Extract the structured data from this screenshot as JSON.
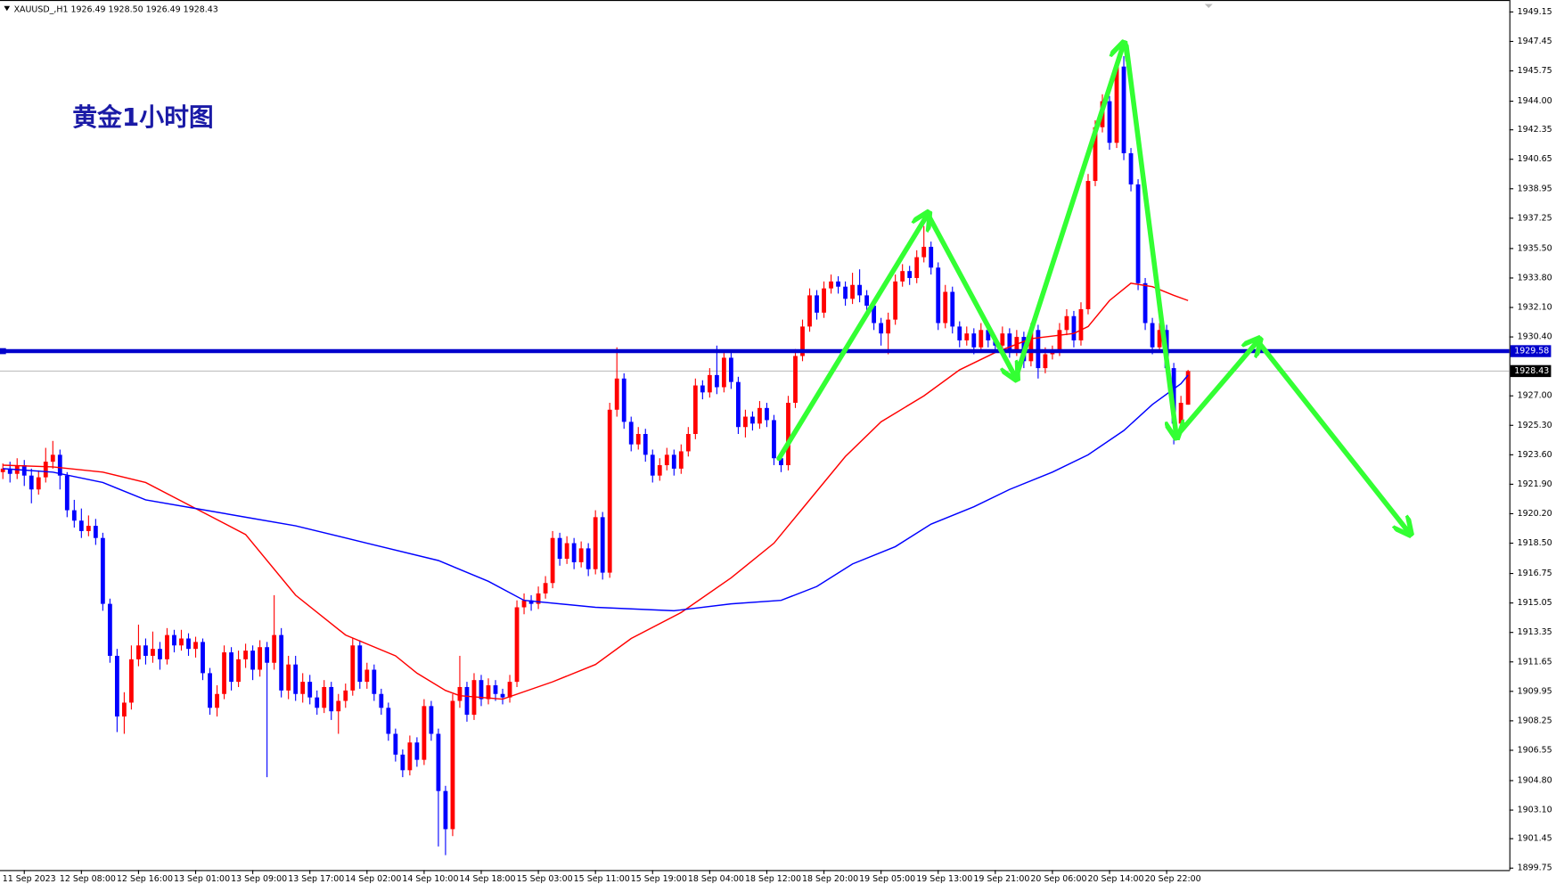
{
  "chart_data": {
    "type": "candlestick",
    "header": "XAUUSD_,H1  1926.49 1928.50 1926.49 1928.43",
    "title": "黄金1小时图",
    "up_color": "#ff0000",
    "down_color": "#0000ff",
    "xlim": [
      -0.4,
      211
    ],
    "ylim": [
      1899.64,
      1949.84
    ],
    "yticks": [
      {
        "value": 1949.15,
        "label": "1949.15"
      },
      {
        "value": 1947.45,
        "label": "1947.45"
      },
      {
        "value": 1945.75,
        "label": "1945.75"
      },
      {
        "value": 1944.0,
        "label": "1944.00"
      },
      {
        "value": 1942.35,
        "label": "1942.35"
      },
      {
        "value": 1940.65,
        "label": "1940.65"
      },
      {
        "value": 1938.95,
        "label": "1938.95"
      },
      {
        "value": 1937.25,
        "label": "1937.25"
      },
      {
        "value": 1935.5,
        "label": "1935.50"
      },
      {
        "value": 1933.8,
        "label": "1933.80"
      },
      {
        "value": 1932.1,
        "label": "1932.10"
      },
      {
        "value": 1930.4,
        "label": "1930.40"
      },
      {
        "value": 1927.0,
        "label": "1927.00"
      },
      {
        "value": 1925.3,
        "label": "1925.30"
      },
      {
        "value": 1923.6,
        "label": "1923.60"
      },
      {
        "value": 1921.9,
        "label": "1921.90"
      },
      {
        "value": 1920.2,
        "label": "1920.20"
      },
      {
        "value": 1918.5,
        "label": "1918.50"
      },
      {
        "value": 1916.75,
        "label": "1916.75"
      },
      {
        "value": 1915.05,
        "label": "1915.05"
      },
      {
        "value": 1913.35,
        "label": "1913.35"
      },
      {
        "value": 1911.65,
        "label": "1911.65"
      },
      {
        "value": 1909.95,
        "label": "1909.95"
      },
      {
        "value": 1908.25,
        "label": "1908.25"
      },
      {
        "value": 1906.55,
        "label": "1906.55"
      },
      {
        "value": 1904.8,
        "label": "1904.80"
      },
      {
        "value": 1903.1,
        "label": "1903.10"
      },
      {
        "value": 1901.45,
        "label": "1901.45"
      },
      {
        "value": 1899.75,
        "label": "1899.75"
      }
    ],
    "xticks": [
      {
        "value": 3,
        "label": "11 Sep 2023"
      },
      {
        "value": 11,
        "label": "12 Sep 08:00"
      },
      {
        "value": 19,
        "label": "12 Sep 16:00"
      },
      {
        "value": 27,
        "label": "13 Sep 01:00"
      },
      {
        "value": 35,
        "label": "13 Sep 09:00"
      },
      {
        "value": 43,
        "label": "13 Sep 17:00"
      },
      {
        "value": 51,
        "label": "14 Sep 02:00"
      },
      {
        "value": 59,
        "label": "14 Sep 10:00"
      },
      {
        "value": 67,
        "label": "14 Sep 18:00"
      },
      {
        "value": 75,
        "label": "15 Sep 03:00"
      },
      {
        "value": 83,
        "label": "15 Sep 11:00"
      },
      {
        "value": 91,
        "label": "15 Sep 19:00"
      },
      {
        "value": 99,
        "label": "18 Sep 04:00"
      },
      {
        "value": 107,
        "label": "18 Sep 12:00"
      },
      {
        "value": 115,
        "label": "18 Sep 20:00"
      },
      {
        "value": 123,
        "label": "19 Sep 05:00"
      },
      {
        "value": 131,
        "label": "19 Sep 13:00"
      },
      {
        "value": 139,
        "label": "19 Sep 21:00"
      },
      {
        "value": 147,
        "label": "20 Sep 06:00"
      },
      {
        "value": 155,
        "label": "20 Sep 14:00"
      },
      {
        "value": 163,
        "label": "20 Sep 22:00"
      }
    ],
    "level_line": {
      "value": 1929.58,
      "color": "#0000cc"
    },
    "price_line": {
      "value": 1928.43,
      "color": "#c0c0c0"
    },
    "moving_averages": [
      {
        "color": "#ff0000",
        "x": [
          0,
          7,
          14,
          20,
          27,
          34,
          41,
          48,
          55,
          58,
          62,
          64,
          70,
          77,
          83,
          88,
          95,
          102,
          108,
          112,
          118,
          123,
          129,
          134,
          139,
          144,
          150,
          152,
          155,
          158,
          161,
          164,
          166
        ],
        "values": [
          1923.0,
          1922.9,
          1922.6,
          1922.0,
          1920.5,
          1919.0,
          1915.5,
          1913.2,
          1912.0,
          1911.0,
          1910.0,
          1909.7,
          1909.5,
          1910.5,
          1911.5,
          1913.0,
          1914.5,
          1916.5,
          1918.5,
          1920.5,
          1923.5,
          1925.5,
          1927.0,
          1928.5,
          1929.5,
          1930.3,
          1930.6,
          1931.0,
          1932.5,
          1933.5,
          1933.3,
          1932.8,
          1932.5
        ]
      },
      {
        "color": "#0000ff",
        "x": [
          0,
          7,
          14,
          20,
          27,
          34,
          41,
          51,
          61,
          68,
          73,
          83,
          94,
          102,
          109,
          114,
          119,
          125,
          130,
          136,
          141,
          147,
          152,
          157,
          161,
          165,
          166
        ],
        "values": [
          1922.8,
          1922.6,
          1922.0,
          1921.0,
          1920.5,
          1920.0,
          1919.5,
          1918.5,
          1917.5,
          1916.3,
          1915.2,
          1914.8,
          1914.6,
          1915.0,
          1915.2,
          1916.0,
          1917.3,
          1918.3,
          1919.6,
          1920.6,
          1921.6,
          1922.6,
          1923.6,
          1925.0,
          1926.5,
          1927.7,
          1928.2
        ]
      }
    ],
    "candles": [
      [
        1922.6,
        1923.1,
        1922.2,
        1922.8
      ],
      [
        1922.8,
        1923.2,
        1922.0,
        1922.5
      ],
      [
        1922.5,
        1923.4,
        1922.2,
        1923.0
      ],
      [
        1923.0,
        1923.3,
        1921.8,
        1922.4
      ],
      [
        1922.4,
        1922.8,
        1920.8,
        1921.6
      ],
      [
        1921.6,
        1922.7,
        1921.3,
        1922.3
      ],
      [
        1922.3,
        1924.0,
        1922.0,
        1923.2
      ],
      [
        1923.2,
        1924.4,
        1922.8,
        1923.6
      ],
      [
        1923.6,
        1923.9,
        1921.6,
        1922.4
      ],
      [
        1922.4,
        1922.6,
        1920.0,
        1920.4
      ],
      [
        1920.4,
        1921.0,
        1919.4,
        1919.8
      ],
      [
        1919.8,
        1920.5,
        1918.8,
        1919.2
      ],
      [
        1919.2,
        1920.1,
        1918.9,
        1919.5
      ],
      [
        1919.5,
        1919.9,
        1918.4,
        1918.8
      ],
      [
        1918.8,
        1919.1,
        1914.6,
        1915.0
      ],
      [
        1915.0,
        1915.3,
        1911.6,
        1912.0
      ],
      [
        1912.0,
        1912.4,
        1907.6,
        1908.5
      ],
      [
        1908.5,
        1909.9,
        1907.5,
        1909.3
      ],
      [
        1909.3,
        1912.6,
        1908.9,
        1911.8
      ],
      [
        1911.8,
        1913.8,
        1911.4,
        1912.6
      ],
      [
        1912.6,
        1913.0,
        1911.5,
        1912.0
      ],
      [
        1912.0,
        1913.4,
        1911.6,
        1912.4
      ],
      [
        1912.4,
        1912.8,
        1911.2,
        1911.8
      ],
      [
        1911.8,
        1913.6,
        1911.5,
        1913.2
      ],
      [
        1913.2,
        1913.5,
        1912.2,
        1912.6
      ],
      [
        1912.6,
        1913.5,
        1912.3,
        1913.0
      ],
      [
        1913.0,
        1913.3,
        1912.0,
        1912.4
      ],
      [
        1912.4,
        1913.1,
        1911.9,
        1912.8
      ],
      [
        1912.8,
        1913.0,
        1910.6,
        1911.0
      ],
      [
        1911.0,
        1911.3,
        1908.6,
        1909.0
      ],
      [
        1909.0,
        1910.3,
        1908.5,
        1909.8
      ],
      [
        1909.8,
        1912.6,
        1909.5,
        1912.2
      ],
      [
        1912.2,
        1912.5,
        1910.0,
        1910.5
      ],
      [
        1910.5,
        1912.3,
        1910.2,
        1911.8
      ],
      [
        1911.8,
        1912.7,
        1911.3,
        1912.3
      ],
      [
        1912.3,
        1912.6,
        1910.6,
        1911.2
      ],
      [
        1911.2,
        1912.9,
        1910.8,
        1912.5
      ],
      [
        1912.5,
        1912.8,
        1905.0,
        1911.6
      ],
      [
        1911.6,
        1915.5,
        1911.2,
        1913.2
      ],
      [
        1913.2,
        1913.6,
        1909.6,
        1910.0
      ],
      [
        1910.0,
        1912.0,
        1909.5,
        1911.5
      ],
      [
        1911.5,
        1912.0,
        1909.4,
        1909.8
      ],
      [
        1909.8,
        1911.0,
        1909.3,
        1910.5
      ],
      [
        1910.5,
        1910.9,
        1909.2,
        1909.6
      ],
      [
        1909.6,
        1910.0,
        1908.6,
        1909.0
      ],
      [
        1909.0,
        1910.6,
        1908.7,
        1910.2
      ],
      [
        1910.2,
        1910.5,
        1908.3,
        1908.8
      ],
      [
        1908.8,
        1909.8,
        1907.5,
        1909.4
      ],
      [
        1909.4,
        1910.4,
        1909.0,
        1910.0
      ],
      [
        1910.0,
        1913.0,
        1909.7,
        1912.6
      ],
      [
        1912.6,
        1912.9,
        1910.1,
        1910.5
      ],
      [
        1910.5,
        1911.6,
        1910.1,
        1911.2
      ],
      [
        1911.2,
        1911.5,
        1909.4,
        1909.8
      ],
      [
        1909.8,
        1910.1,
        1908.6,
        1909.0
      ],
      [
        1909.0,
        1909.3,
        1907.1,
        1907.5
      ],
      [
        1907.5,
        1907.8,
        1905.9,
        1906.3
      ],
      [
        1906.3,
        1906.6,
        1905.0,
        1905.4
      ],
      [
        1905.4,
        1907.4,
        1905.1,
        1907.0
      ],
      [
        1907.0,
        1907.3,
        1905.6,
        1906.0
      ],
      [
        1906.0,
        1909.5,
        1905.7,
        1909.1
      ],
      [
        1909.1,
        1909.4,
        1907.1,
        1907.5
      ],
      [
        1907.5,
        1907.8,
        1901.0,
        1904.2
      ],
      [
        1904.2,
        1904.5,
        1900.5,
        1902.0
      ],
      [
        1902.0,
        1909.8,
        1901.6,
        1909.4
      ],
      [
        1909.4,
        1912.0,
        1909.0,
        1910.2
      ],
      [
        1910.2,
        1910.5,
        1908.2,
        1908.6
      ],
      [
        1908.6,
        1911.0,
        1908.3,
        1910.6
      ],
      [
        1910.6,
        1910.9,
        1909.1,
        1909.5
      ],
      [
        1909.5,
        1910.7,
        1909.2,
        1910.3
      ],
      [
        1910.3,
        1910.6,
        1909.4,
        1909.8
      ],
      [
        1909.8,
        1910.1,
        1909.2,
        1909.6
      ],
      [
        1909.6,
        1910.9,
        1909.3,
        1910.5
      ],
      [
        1910.5,
        1915.2,
        1910.2,
        1914.8
      ],
      [
        1914.8,
        1915.6,
        1914.4,
        1915.2
      ],
      [
        1915.2,
        1915.5,
        1914.6,
        1915.0
      ],
      [
        1915.0,
        1916.0,
        1914.7,
        1915.6
      ],
      [
        1915.6,
        1916.6,
        1915.3,
        1916.2
      ],
      [
        1916.2,
        1919.2,
        1915.9,
        1918.8
      ],
      [
        1918.8,
        1919.1,
        1917.2,
        1917.6
      ],
      [
        1917.6,
        1918.9,
        1917.3,
        1918.5
      ],
      [
        1918.5,
        1918.8,
        1917.0,
        1917.4
      ],
      [
        1917.4,
        1918.6,
        1917.1,
        1918.2
      ],
      [
        1918.2,
        1918.5,
        1916.6,
        1917.0
      ],
      [
        1917.0,
        1920.4,
        1916.7,
        1920.0
      ],
      [
        1920.0,
        1920.3,
        1916.4,
        1916.8
      ],
      [
        1916.8,
        1926.6,
        1916.5,
        1926.2
      ],
      [
        1926.2,
        1929.8,
        1925.8,
        1928.0
      ],
      [
        1928.0,
        1928.3,
        1925.1,
        1925.5
      ],
      [
        1925.5,
        1925.8,
        1923.8,
        1924.2
      ],
      [
        1924.2,
        1925.2,
        1923.9,
        1924.8
      ],
      [
        1924.8,
        1925.1,
        1923.2,
        1923.6
      ],
      [
        1923.6,
        1923.9,
        1922.0,
        1922.4
      ],
      [
        1922.4,
        1923.4,
        1922.1,
        1923.0
      ],
      [
        1923.0,
        1924.0,
        1922.7,
        1923.6
      ],
      [
        1923.6,
        1923.9,
        1922.4,
        1922.8
      ],
      [
        1922.8,
        1924.2,
        1922.5,
        1923.8
      ],
      [
        1923.8,
        1925.2,
        1923.5,
        1924.8
      ],
      [
        1924.8,
        1928.0,
        1924.5,
        1927.6
      ],
      [
        1927.6,
        1927.9,
        1926.8,
        1927.2
      ],
      [
        1927.2,
        1928.6,
        1926.9,
        1928.2
      ],
      [
        1928.2,
        1929.9,
        1927.1,
        1927.5
      ],
      [
        1927.5,
        1929.6,
        1927.2,
        1929.2
      ],
      [
        1929.2,
        1929.5,
        1927.4,
        1927.8
      ],
      [
        1927.8,
        1928.1,
        1924.8,
        1925.2
      ],
      [
        1925.2,
        1926.2,
        1924.6,
        1925.8
      ],
      [
        1925.8,
        1926.1,
        1925.0,
        1925.4
      ],
      [
        1925.4,
        1926.7,
        1925.1,
        1926.3
      ],
      [
        1926.3,
        1926.6,
        1925.2,
        1925.6
      ],
      [
        1925.6,
        1925.9,
        1923.0,
        1923.4
      ],
      [
        1923.4,
        1923.7,
        1922.6,
        1923.0
      ],
      [
        1923.0,
        1927.0,
        1922.7,
        1926.6
      ],
      [
        1926.6,
        1929.7,
        1926.3,
        1929.3
      ],
      [
        1929.3,
        1931.4,
        1929.0,
        1931.0
      ],
      [
        1931.0,
        1933.2,
        1930.7,
        1932.8
      ],
      [
        1932.8,
        1933.1,
        1931.4,
        1931.8
      ],
      [
        1931.8,
        1933.6,
        1931.5,
        1933.2
      ],
      [
        1933.2,
        1934.0,
        1932.9,
        1933.6
      ],
      [
        1933.6,
        1933.9,
        1932.9,
        1933.3
      ],
      [
        1933.3,
        1933.6,
        1932.2,
        1932.6
      ],
      [
        1932.6,
        1934.1,
        1932.3,
        1933.4
      ],
      [
        1933.4,
        1934.3,
        1932.4,
        1932.8
      ],
      [
        1932.8,
        1933.1,
        1931.8,
        1932.2
      ],
      [
        1932.2,
        1932.5,
        1930.8,
        1931.2
      ],
      [
        1931.2,
        1931.5,
        1929.9,
        1930.6
      ],
      [
        1930.6,
        1931.8,
        1929.4,
        1931.4
      ],
      [
        1931.4,
        1934.0,
        1931.1,
        1933.6
      ],
      [
        1933.6,
        1934.6,
        1933.3,
        1934.2
      ],
      [
        1934.2,
        1934.5,
        1933.4,
        1933.8
      ],
      [
        1933.8,
        1935.4,
        1933.5,
        1935.0
      ],
      [
        1935.0,
        1936.8,
        1934.7,
        1935.6
      ],
      [
        1935.6,
        1935.9,
        1934.0,
        1934.4
      ],
      [
        1934.4,
        1934.7,
        1930.8,
        1931.2
      ],
      [
        1931.2,
        1933.4,
        1930.9,
        1933.0
      ],
      [
        1933.0,
        1933.3,
        1930.6,
        1931.0
      ],
      [
        1931.0,
        1931.3,
        1929.8,
        1930.2
      ],
      [
        1930.2,
        1931.0,
        1929.9,
        1930.6
      ],
      [
        1930.6,
        1930.9,
        1929.4,
        1929.8
      ],
      [
        1929.8,
        1931.2,
        1929.5,
        1930.8
      ],
      [
        1930.8,
        1931.1,
        1929.8,
        1930.2
      ],
      [
        1930.2,
        1930.5,
        1929.5,
        1929.9
      ],
      [
        1929.9,
        1931.0,
        1929.6,
        1930.6
      ],
      [
        1930.6,
        1930.9,
        1929.2,
        1929.6
      ],
      [
        1929.6,
        1930.8,
        1929.3,
        1930.4
      ],
      [
        1930.4,
        1930.7,
        1928.6,
        1929.0
      ],
      [
        1929.0,
        1931.2,
        1928.7,
        1930.8
      ],
      [
        1930.8,
        1931.1,
        1928.0,
        1928.6
      ],
      [
        1928.6,
        1929.8,
        1928.3,
        1929.4
      ],
      [
        1929.4,
        1929.9,
        1929.1,
        1929.6
      ],
      [
        1929.6,
        1931.2,
        1929.3,
        1930.8
      ],
      [
        1930.8,
        1932.0,
        1930.5,
        1931.6
      ],
      [
        1931.6,
        1931.9,
        1929.8,
        1930.2
      ],
      [
        1930.2,
        1932.4,
        1929.9,
        1932.0
      ],
      [
        1932.0,
        1939.8,
        1931.7,
        1939.4
      ],
      [
        1939.4,
        1942.9,
        1939.1,
        1942.5
      ],
      [
        1942.5,
        1944.4,
        1942.2,
        1944.0
      ],
      [
        1944.0,
        1944.3,
        1941.2,
        1941.6
      ],
      [
        1941.6,
        1946.4,
        1941.3,
        1946.0
      ],
      [
        1946.0,
        1946.6,
        1940.6,
        1941.0
      ],
      [
        1941.0,
        1941.3,
        1938.8,
        1939.2
      ],
      [
        1939.2,
        1939.5,
        1933.1,
        1933.5
      ],
      [
        1933.5,
        1933.8,
        1930.8,
        1931.2
      ],
      [
        1931.2,
        1931.5,
        1929.4,
        1929.8
      ],
      [
        1929.8,
        1931.2,
        1929.5,
        1930.8
      ],
      [
        1930.8,
        1931.1,
        1928.2,
        1928.6
      ],
      [
        1928.6,
        1928.9,
        1924.2,
        1925.4
      ],
      [
        1925.4,
        1927.0,
        1925.1,
        1926.6
      ],
      [
        1926.49,
        1928.5,
        1926.49,
        1928.43
      ]
    ]
  }
}
